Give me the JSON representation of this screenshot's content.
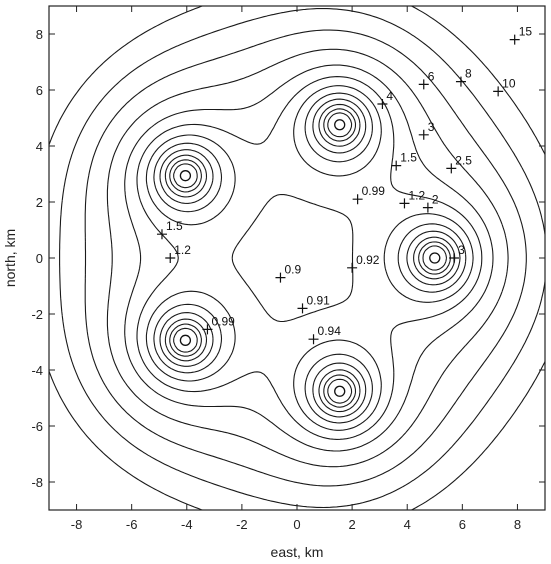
{
  "chart_data": {
    "type": "contour",
    "xlabel": "east, km",
    "ylabel": "north, km",
    "xlim": [
      -9,
      9
    ],
    "ylim": [
      -9,
      9
    ],
    "xticks": [
      -8,
      -6,
      -4,
      -2,
      0,
      2,
      4,
      6,
      8
    ],
    "yticks": [
      8,
      6,
      4,
      2,
      0,
      -2,
      -4,
      -6,
      -8
    ],
    "xtick_labels": [
      "-8",
      "-6",
      "-4",
      "-2",
      "0",
      "2",
      "4",
      "6",
      "8"
    ],
    "ytick_labels": [
      "8",
      "6",
      "4",
      "2",
      "0",
      "-2",
      "-4",
      "-6",
      "-8"
    ],
    "grid": false,
    "stations": [
      {
        "x": 5.0,
        "y": 0.0
      },
      {
        "x": 1.55,
        "y": 4.76
      },
      {
        "x": -4.05,
        "y": 2.94
      },
      {
        "x": -4.05,
        "y": -2.94
      },
      {
        "x": 1.55,
        "y": -4.76
      }
    ],
    "contour_levels": [
      0.9,
      0.91,
      0.92,
      0.94,
      0.99,
      1.2,
      1.5,
      2,
      2.5,
      3,
      4,
      6,
      8,
      10,
      15
    ],
    "contour_labels": [
      {
        "x": -0.6,
        "y": -0.7,
        "text": "0.9"
      },
      {
        "x": 0.2,
        "y": -1.8,
        "text": "0.91"
      },
      {
        "x": 2.0,
        "y": -0.35,
        "text": "0.92"
      },
      {
        "x": 0.6,
        "y": -2.9,
        "text": "0.94"
      },
      {
        "x": -3.25,
        "y": -2.55,
        "text": "0.99"
      },
      {
        "x": 2.2,
        "y": 2.1,
        "text": "0.99"
      },
      {
        "x": -4.9,
        "y": 0.85,
        "text": "1.5"
      },
      {
        "x": -4.6,
        "y": 0.0,
        "text": "1.2"
      },
      {
        "x": 3.9,
        "y": 1.95,
        "text": "1.2"
      },
      {
        "x": 3.6,
        "y": 3.3,
        "text": "1.5"
      },
      {
        "x": 4.75,
        "y": 1.8,
        "text": "2"
      },
      {
        "x": 5.6,
        "y": 3.2,
        "text": "2.5"
      },
      {
        "x": 4.6,
        "y": 4.4,
        "text": "3"
      },
      {
        "x": 5.7,
        "y": 0.0,
        "text": "3"
      },
      {
        "x": 3.1,
        "y": 5.5,
        "text": "4"
      },
      {
        "x": 4.6,
        "y": 6.2,
        "text": "6"
      },
      {
        "x": 5.95,
        "y": 6.3,
        "text": "8"
      },
      {
        "x": 7.3,
        "y": 5.95,
        "text": "10"
      },
      {
        "x": 7.9,
        "y": 7.8,
        "text": "15"
      }
    ]
  }
}
